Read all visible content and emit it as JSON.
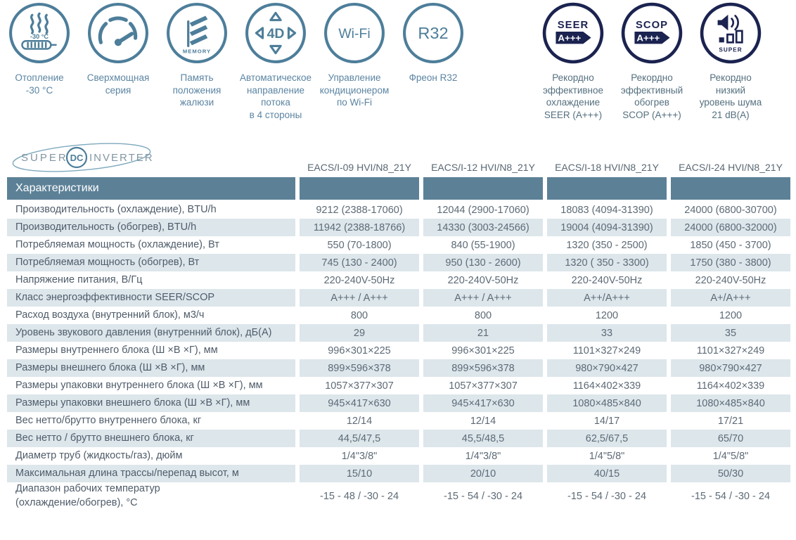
{
  "colors": {
    "accent": "#4d7e9a",
    "navy": "#1b2350",
    "band": "#5c8197",
    "stripe": "#dce6eb"
  },
  "features": [
    {
      "label": "Отопление\n-30 °C",
      "icon_text": "-30 °C"
    },
    {
      "label": "Сверхмощная\nсерия"
    },
    {
      "label": "Память\nположения\nжалюзи",
      "icon_text": "MEMORY"
    },
    {
      "label": "Автоматическое\nнаправление\nпотока\nв 4 стороны",
      "icon_text": "4D"
    },
    {
      "label": "Управление\nкондиционером\nпо Wi-Fi",
      "icon_text": "Wi-Fi"
    },
    {
      "label": "Фреон R32",
      "icon_text": "R32"
    },
    {
      "label": "Рекордно\nэффективное\nохлаждение\nSEER (A+++)",
      "icon_text": "SEER",
      "badge": "A+++"
    },
    {
      "label": "Рекордно\nэффективный\nобогрев\nSCOP (A+++)",
      "icon_text": "SCOP",
      "badge": "A+++"
    },
    {
      "label": "Рекордно\nнизкий\nуровень шума\n21 dB(A)",
      "icon_text": "SUPER"
    }
  ],
  "logo": {
    "super": "SUPER",
    "dc": "DC",
    "inverter": "INVERTER"
  },
  "table": {
    "header_label": "Характеристики",
    "columns": [
      "EACS/I-09 HVI/N8_21Y",
      "EACS/I-12 HVI/N8_21Y",
      "EACS/I-18 HVI/N8_21Y",
      "EACS/I-24 HVI/N8_21Y"
    ],
    "rows": [
      {
        "label": "Производительность (охлаждение), BTU/h",
        "values": [
          "9212 (2388-17060)",
          "12044 (2900-17060)",
          "18083 (4094-31390)",
          "24000 (6800-30700)"
        ]
      },
      {
        "label": "Производительность (обогрев), BTU/h",
        "values": [
          "11942 (2388-18766)",
          "14330 (3003-24566)",
          "19004 (4094-31390)",
          "24000 (6800-32000)"
        ]
      },
      {
        "label": "Потребляемая мощность (охлаждение), Вт",
        "values": [
          "550 (70-1800)",
          "840 (55-1900)",
          "1320 (350 - 2500)",
          "1850 (450 - 3700)"
        ]
      },
      {
        "label": "Потребляемая мощность (обогрев), Вт",
        "values": [
          "745 (130 - 2400)",
          "950 (130 - 2600)",
          "1320 ( 350 - 3300)",
          "1750 (380 - 3800)"
        ]
      },
      {
        "label": "Напряжение питания, В/Гц",
        "values": [
          "220-240V-50Hz",
          "220-240V-50Hz",
          "220-240V-50Hz",
          "220-240V-50Hz"
        ]
      },
      {
        "label": "Класс энергоэффективности SEER/SCOP",
        "values": [
          "A+++ / A+++",
          "A+++ / A+++",
          "A++/A+++",
          "A+/A+++"
        ]
      },
      {
        "label": "Расход воздуха (внутренний блок), м3/ч",
        "values": [
          "800",
          "800",
          "1200",
          "1200"
        ]
      },
      {
        "label": "Уровень звукового давления (внутренний блок), дБ(А)",
        "values": [
          "29",
          "21",
          "33",
          "35"
        ]
      },
      {
        "label": "Размеры внутреннего блока (Ш ×В ×Г), мм",
        "values": [
          "996×301×225",
          "996×301×225",
          "1101×327×249",
          "1101×327×249"
        ]
      },
      {
        "label": "Размеры внешнего блока (Ш ×В ×Г), мм",
        "values": [
          "899×596×378",
          "899×596×378",
          "980×790×427",
          "980×790×427"
        ]
      },
      {
        "label": "Размеры упаковки внутреннего блока (Ш ×В ×Г), мм",
        "values": [
          "1057×377×307",
          "1057×377×307",
          "1164×402×339",
          "1164×402×339"
        ]
      },
      {
        "label": "Размеры упаковки внешнего блока (Ш ×В ×Г), мм",
        "values": [
          "945×417×630",
          "945×417×630",
          "1080×485×840",
          "1080×485×840"
        ]
      },
      {
        "label": "Вес нетто/брутто внутреннего блока, кг",
        "values": [
          "12/14",
          "12/14",
          "14/17",
          "17/21"
        ]
      },
      {
        "label": "Вес нетто / брутто внешнего блока, кг",
        "values": [
          "44,5/47,5",
          "45,5/48,5",
          "62,5/67,5",
          "65/70"
        ]
      },
      {
        "label": "Диаметр труб (жидкость/газ), дюйм",
        "values": [
          "1/4\"3/8\"",
          "1/4\"3/8\"",
          "1/4\"5/8\"",
          "1/4\"5/8\""
        ]
      },
      {
        "label": "Максимальная длина трассы/перепад высот, м",
        "values": [
          "15/10",
          "20/10",
          "40/15",
          "50/30"
        ]
      },
      {
        "label": "Диапазон рабочих температур\n(охлаждение/обогрев), °С",
        "values": [
          "-15 - 48 / -30 - 24",
          "-15 - 54 / -30 - 24",
          "-15 - 54 / -30 - 24",
          "-15 - 54 / -30 - 24"
        ]
      }
    ]
  }
}
